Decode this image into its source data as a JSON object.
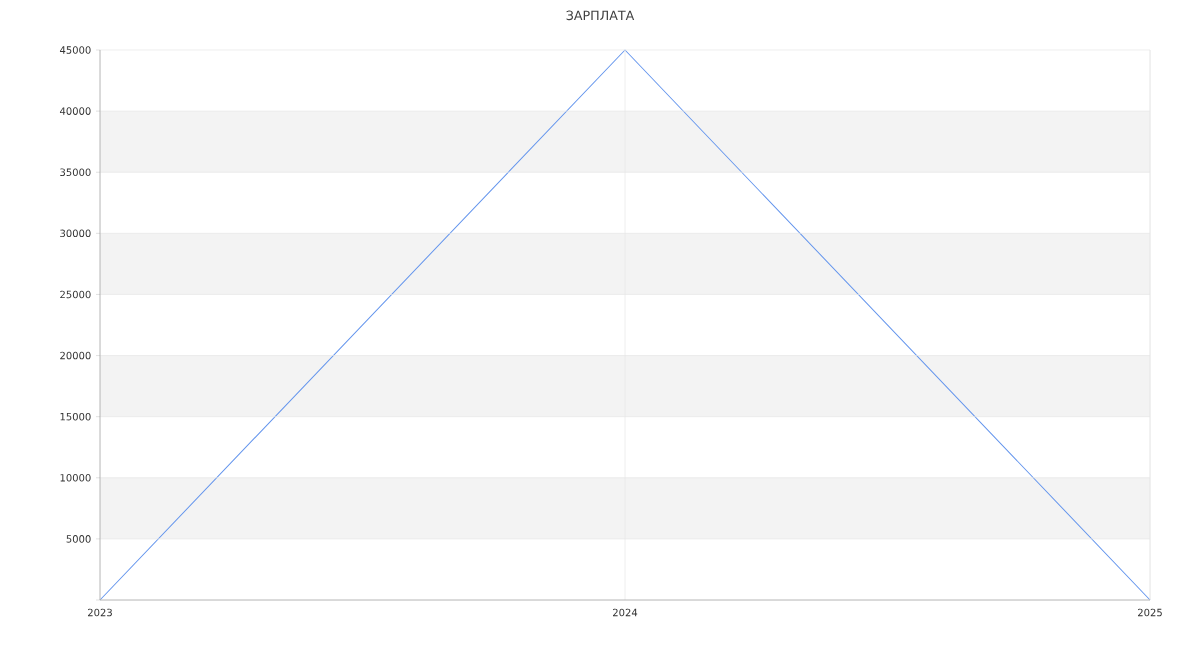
{
  "chart_data": {
    "type": "line",
    "title": "ЗАРПЛАТА",
    "x": [
      2023,
      2024,
      2025
    ],
    "series": [
      {
        "color": "#6495ed",
        "values": [
          0,
          45000,
          0
        ]
      }
    ],
    "xlim": [
      2023,
      2025
    ],
    "xticks": [
      2023,
      2024,
      2025
    ],
    "ylim": [
      0,
      45000
    ],
    "yticks": [
      {
        "value": 0,
        "label": null
      },
      5000,
      10000,
      15000,
      20000,
      25000,
      30000,
      35000,
      40000,
      45000
    ],
    "grid": true,
    "marker": "none",
    "line_style": "solid",
    "bands": [
      {
        "axis": "y",
        "from": 5000,
        "to": 10000,
        "color": "#f3f3f3"
      },
      {
        "axis": "y",
        "from": 15000,
        "to": 20000,
        "color": "#f3f3f3"
      },
      {
        "axis": "y",
        "from": 25000,
        "to": 30000,
        "color": "#f3f3f3"
      },
      {
        "axis": "y",
        "from": 35000,
        "to": 40000,
        "color": "#f3f3f3"
      }
    ]
  }
}
